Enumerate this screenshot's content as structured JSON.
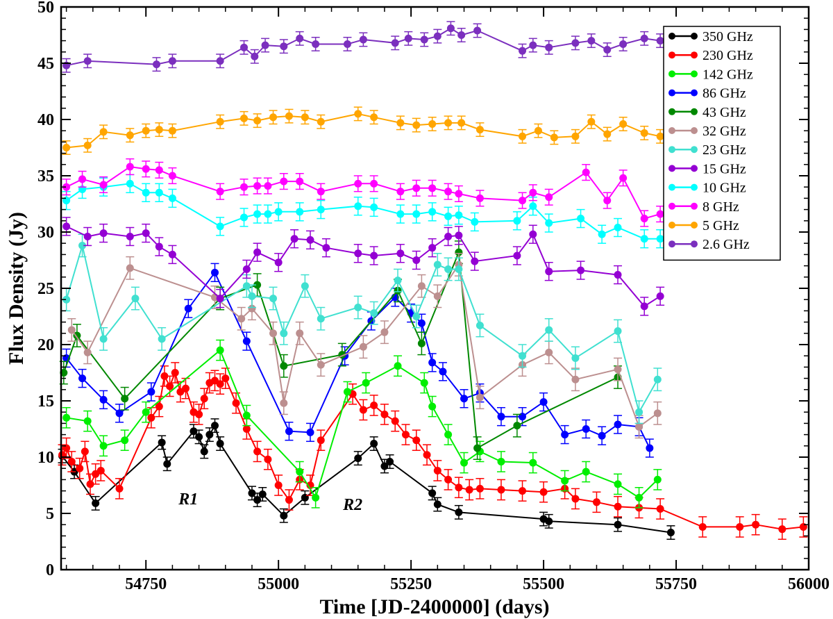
{
  "chart_data": {
    "type": "line",
    "title": "",
    "xlabel": "Time [JD-2400000] (days)",
    "ylabel": "Flux  Density (Jy)",
    "xlim": [
      54590,
      56000
    ],
    "ylim": [
      0,
      50
    ],
    "xticks": [
      54750,
      55000,
      55250,
      55500,
      55750,
      56000
    ],
    "yticks": [
      0,
      5,
      10,
      15,
      20,
      25,
      30,
      35,
      40,
      45,
      50
    ],
    "grid": false,
    "legend_position": "top-right",
    "annotations": [
      {
        "text": "R1",
        "x": 54830,
        "y": 5.8
      },
      {
        "text": "R2",
        "x": 55140,
        "y": 5.3
      }
    ],
    "series": [
      {
        "name": "350 GHz",
        "color": "#000000",
        "err": 0.6,
        "x": [
          54592,
          54615,
          54655,
          54780,
          54790,
          54840,
          54850,
          54860,
          54870,
          54880,
          54890,
          54950,
          54960,
          54970,
          55010,
          55050,
          55150,
          55180,
          55200,
          55210,
          55290,
          55300,
          55340,
          55500,
          55510,
          55640,
          55740
        ],
        "y": [
          10.1,
          8.7,
          5.9,
          11.3,
          9.4,
          12.3,
          11.8,
          10.5,
          12.0,
          12.8,
          11.2,
          6.8,
          6.2,
          6.7,
          4.8,
          6.4,
          9.9,
          11.2,
          9.2,
          9.6,
          6.8,
          5.8,
          5.1,
          4.5,
          4.3,
          4.0,
          3.3
        ]
      },
      {
        "name": "230 GHz",
        "color": "#ff0000",
        "err": 0.9,
        "x": [
          54592,
          54600,
          54610,
          54625,
          54635,
          54645,
          54655,
          54665,
          54700,
          54760,
          54775,
          54785,
          54795,
          54805,
          54815,
          54825,
          54840,
          54850,
          54860,
          54870,
          54880,
          54890,
          54900,
          54920,
          54940,
          54960,
          54980,
          55000,
          55020,
          55040,
          55060,
          55080,
          55140,
          55160,
          55180,
          55200,
          55220,
          55240,
          55260,
          55280,
          55300,
          55320,
          55340,
          55360,
          55380,
          55420,
          55460,
          55500,
          55540,
          55560,
          55600,
          55640,
          55680,
          55720,
          55800,
          55870,
          55900,
          55950,
          55990
        ],
        "y": [
          10.2,
          10.8,
          9.6,
          9.0,
          10.5,
          7.6,
          8.5,
          8.8,
          7.2,
          13.5,
          14.5,
          17.2,
          16.3,
          17.5,
          15.8,
          16.1,
          14.0,
          13.8,
          15.2,
          16.6,
          16.8,
          16.5,
          17.0,
          14.8,
          12.5,
          10.5,
          9.8,
          7.5,
          6.2,
          8.0,
          7.5,
          11.5,
          15.6,
          14.2,
          14.6,
          13.8,
          13.2,
          12.0,
          11.5,
          10.2,
          8.8,
          8.0,
          7.3,
          7.1,
          7.2,
          7.1,
          7.0,
          6.9,
          7.2,
          6.3,
          6.0,
          5.6,
          5.5,
          5.4,
          3.8,
          3.8,
          4.0,
          3.6,
          3.8
        ]
      },
      {
        "name": "142 GHz",
        "color": "#00ee00",
        "err": 0.9,
        "x": [
          54600,
          54640,
          54670,
          54710,
          54750,
          54890,
          54940,
          55040,
          55070,
          55130,
          55165,
          55225,
          55275,
          55290,
          55320,
          55350,
          55380,
          55420,
          55480,
          55540,
          55580,
          55640,
          55680,
          55715
        ],
        "y": [
          13.5,
          13.2,
          11.0,
          11.5,
          14.0,
          19.5,
          13.7,
          8.7,
          6.4,
          15.8,
          16.6,
          18.1,
          16.6,
          14.5,
          12.0,
          9.5,
          10.5,
          9.6,
          9.5,
          7.9,
          8.7,
          7.6,
          6.4,
          8.0
        ]
      },
      {
        "name": "86 GHz",
        "color": "#0000ff",
        "err": 0.8,
        "x": [
          54600,
          54630,
          54670,
          54700,
          54760,
          54830,
          54880,
          54940,
          55020,
          55060,
          55125,
          55175,
          55220,
          55250,
          55270,
          55290,
          55310,
          55350,
          55380,
          55420,
          55460,
          55500,
          55540,
          55580,
          55610,
          55640,
          55680,
          55700
        ],
        "y": [
          18.8,
          17.0,
          15.1,
          13.9,
          15.8,
          23.2,
          26.4,
          20.3,
          12.3,
          12.2,
          19.0,
          22.1,
          24.2,
          22.8,
          21.9,
          18.4,
          17.6,
          15.2,
          15.7,
          13.6,
          13.6,
          14.9,
          12.0,
          12.5,
          11.9,
          12.9,
          12.7,
          10.8
        ]
      },
      {
        "name": "43 GHz",
        "color": "#008800",
        "err": 1.0,
        "x": [
          54595,
          54620,
          54710,
          54890,
          54960,
          55010,
          55120,
          55225,
          55270,
          55340,
          55375,
          55450,
          55640
        ],
        "y": [
          17.5,
          20.8,
          15.2,
          24.1,
          25.3,
          18.1,
          19.1,
          24.8,
          20.1,
          28.2,
          10.8,
          12.8,
          17.1
        ]
      },
      {
        "name": "32 GHz",
        "color": "#bc8f8f",
        "err": 1.0,
        "x": [
          54610,
          54640,
          54720,
          54880,
          54930,
          54950,
          54990,
          55010,
          55040,
          55080,
          55160,
          55200,
          55270,
          55300,
          55340,
          55380,
          55460,
          55510,
          55560,
          55640,
          55680,
          55715
        ],
        "y": [
          21.3,
          19.3,
          26.8,
          24.2,
          22.3,
          23.2,
          21.0,
          14.8,
          21.0,
          18.2,
          19.8,
          21.1,
          25.2,
          24.3,
          27.1,
          15.3,
          18.2,
          19.3,
          16.9,
          17.8,
          12.7,
          13.9
        ]
      },
      {
        "name": "23 GHz",
        "color": "#40e0d0",
        "err": 1.0,
        "x": [
          54600,
          54630,
          54670,
          54730,
          54780,
          54940,
          54950,
          54990,
          55010,
          55050,
          55080,
          55150,
          55180,
          55225,
          55260,
          55300,
          55320,
          55340,
          55380,
          55460,
          55510,
          55560,
          55640,
          55680,
          55715
        ],
        "y": [
          24.0,
          28.8,
          20.5,
          24.1,
          20.5,
          25.2,
          24.3,
          24.1,
          21.0,
          25.2,
          22.3,
          23.3,
          22.8,
          25.7,
          22.5,
          27.1,
          26.7,
          26.7,
          21.7,
          19.0,
          21.3,
          18.8,
          21.2,
          14.0,
          16.9
        ]
      },
      {
        "name": "15 GHz",
        "color": "#9400d3",
        "err": 0.8,
        "x": [
          54600,
          54640,
          54670,
          54720,
          54750,
          54775,
          54800,
          54890,
          54940,
          54960,
          55000,
          55030,
          55060,
          55090,
          55150,
          55180,
          55230,
          55260,
          55290,
          55320,
          55340,
          55370,
          55450,
          55480,
          55510,
          55570,
          55640,
          55690,
          55720
        ],
        "y": [
          30.5,
          29.6,
          29.9,
          29.6,
          29.9,
          28.7,
          28.0,
          24.1,
          26.7,
          28.2,
          27.3,
          29.4,
          29.3,
          28.6,
          28.1,
          27.9,
          28.1,
          27.5,
          28.6,
          29.6,
          29.7,
          27.4,
          27.9,
          29.8,
          26.5,
          26.6,
          26.2,
          23.4,
          24.3
        ]
      },
      {
        "name": "10 GHz",
        "color": "#00ffff",
        "err": 0.8,
        "x": [
          54600,
          54630,
          54670,
          54720,
          54750,
          54775,
          54800,
          54890,
          54935,
          54960,
          54980,
          55000,
          55040,
          55080,
          55150,
          55180,
          55230,
          55260,
          55290,
          55320,
          55340,
          55370,
          55450,
          55480,
          55510,
          55570,
          55610,
          55640,
          55690,
          55720
        ],
        "y": [
          32.8,
          33.8,
          34.0,
          34.3,
          33.5,
          33.5,
          33.0,
          30.5,
          31.3,
          31.6,
          31.6,
          31.8,
          31.8,
          32.0,
          32.3,
          32.2,
          31.6,
          31.6,
          31.8,
          31.4,
          31.5,
          30.9,
          31.0,
          32.3,
          30.8,
          31.2,
          29.8,
          30.4,
          29.4,
          29.4
        ]
      },
      {
        "name": "8 GHz",
        "color": "#ff00ff",
        "err": 0.7,
        "x": [
          54600,
          54630,
          54670,
          54720,
          54750,
          54775,
          54800,
          54890,
          54935,
          54960,
          54980,
          55010,
          55040,
          55080,
          55150,
          55180,
          55230,
          55260,
          55290,
          55320,
          55340,
          55380,
          55460,
          55480,
          55510,
          55580,
          55620,
          55650,
          55690,
          55720
        ],
        "y": [
          34.0,
          34.7,
          34.2,
          35.8,
          35.6,
          35.5,
          35.0,
          33.6,
          34.0,
          34.1,
          34.1,
          34.5,
          34.5,
          33.6,
          34.3,
          34.3,
          33.6,
          33.9,
          33.9,
          33.6,
          33.4,
          33.0,
          32.8,
          33.5,
          33.1,
          35.3,
          32.8,
          34.8,
          31.2,
          31.6
        ]
      },
      {
        "name": "5 GHz",
        "color": "#ffa500",
        "err": 0.6,
        "x": [
          54600,
          54640,
          54670,
          54720,
          54750,
          54775,
          54800,
          54890,
          54935,
          54960,
          54990,
          55020,
          55050,
          55080,
          55150,
          55180,
          55230,
          55260,
          55290,
          55320,
          55345,
          55380,
          55460,
          55490,
          55520,
          55560,
          55590,
          55620,
          55650,
          55690,
          55720
        ],
        "y": [
          37.5,
          37.7,
          38.9,
          38.6,
          39.0,
          39.1,
          39.0,
          39.8,
          40.1,
          39.9,
          40.2,
          40.3,
          40.2,
          39.8,
          40.5,
          40.2,
          39.7,
          39.5,
          39.6,
          39.7,
          39.7,
          39.1,
          38.5,
          39.0,
          38.4,
          38.5,
          39.8,
          38.7,
          39.6,
          38.8,
          38.5
        ]
      },
      {
        "name": "2.6 GHz",
        "color": "#7b2fbe",
        "err": 0.6,
        "x": [
          54600,
          54640,
          54770,
          54800,
          54890,
          54935,
          54955,
          54975,
          55010,
          55040,
          55070,
          55130,
          55160,
          55220,
          55245,
          55275,
          55300,
          55325,
          55345,
          55375,
          55460,
          55480,
          55510,
          55560,
          55590,
          55620,
          55650,
          55690,
          55720
        ],
        "y": [
          44.8,
          45.2,
          44.9,
          45.2,
          45.2,
          46.4,
          45.6,
          46.6,
          46.5,
          47.2,
          46.7,
          46.7,
          47.1,
          46.8,
          47.2,
          47.1,
          47.4,
          48.1,
          47.5,
          47.9,
          46.1,
          46.6,
          46.4,
          46.8,
          47.0,
          46.2,
          46.7,
          47.2,
          47.0
        ]
      }
    ]
  }
}
